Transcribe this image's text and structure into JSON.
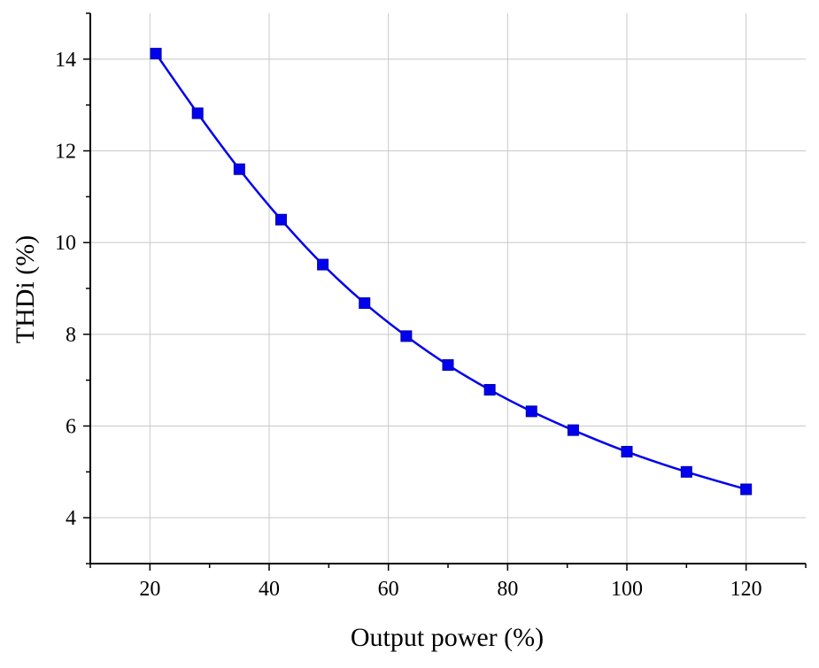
{
  "chart_data": {
    "type": "line",
    "title": "",
    "xlabel": "Output power (%)",
    "ylabel": "THDi (%)",
    "xlim": [
      10,
      130
    ],
    "ylim": [
      3,
      15
    ],
    "x_ticks": [
      20,
      40,
      60,
      80,
      100,
      120
    ],
    "y_ticks": [
      4,
      6,
      8,
      10,
      12,
      14
    ],
    "x_tick_labels": [
      "20",
      "40",
      "60",
      "80",
      "100",
      "120"
    ],
    "y_tick_labels": [
      "4",
      "6",
      "8",
      "10",
      "12",
      "14"
    ],
    "grid": true,
    "marker": "square",
    "series": [
      {
        "color": "#0000ee",
        "x": [
          21,
          28,
          35,
          42,
          49,
          56,
          63,
          70,
          77,
          84,
          91,
          100,
          110,
          120
        ],
        "y": [
          14.12,
          12.82,
          11.6,
          10.5,
          9.52,
          8.68,
          7.96,
          7.33,
          6.79,
          6.32,
          5.91,
          5.44,
          5.0,
          4.62
        ]
      }
    ]
  }
}
